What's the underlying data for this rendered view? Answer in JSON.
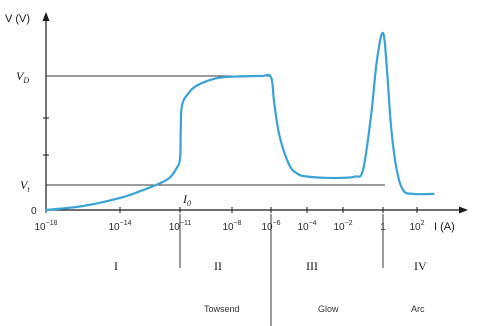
{
  "colors": {
    "curve": "#3aa3d6",
    "axis": "#1a1a1a",
    "background": "#ffffff"
  },
  "chart_data": {
    "type": "line",
    "title": "",
    "xlabel": "I (A)",
    "ylabel": "V (V)",
    "x_scale": "log",
    "xlim": [
      1e-18,
      10000.0
    ],
    "grid": false,
    "x_ticks": [
      {
        "base": "10",
        "exp": "−18",
        "value": 1e-18
      },
      {
        "base": "10",
        "exp": "−14",
        "value": 1e-14
      },
      {
        "base": "10",
        "exp": "−11",
        "value": 1e-11
      },
      {
        "base": "10",
        "exp": "−8",
        "value": 1e-08
      },
      {
        "base": "10",
        "exp": "−6",
        "value": 1e-06
      },
      {
        "base": "10",
        "exp": "−4",
        "value": 0.0001
      },
      {
        "base": "10",
        "exp": "−2",
        "value": 0.01
      },
      {
        "base": "1",
        "exp": "",
        "value": 1
      },
      {
        "base": "10",
        "exp": "2",
        "value": 100
      }
    ],
    "y_levels": {
      "zero": {
        "label": "0",
        "value": 0
      },
      "vt": {
        "base": "V",
        "sub": "t"
      },
      "vd": {
        "base": "V",
        "sub": "D"
      }
    },
    "annotations": {
      "i0": {
        "base": "I",
        "sub": "0",
        "x": 1e-11
      }
    },
    "series": [
      {
        "points": [
          [
            1e-18,
            0.0
          ],
          [
            1e-16,
            0.03
          ],
          [
            1e-14,
            0.09
          ],
          [
            1e-13,
            0.14
          ],
          [
            1e-12,
            0.2
          ],
          [
            3e-12,
            0.24
          ],
          [
            6e-12,
            0.3
          ],
          [
            1e-11,
            0.38
          ],
          [
            1.1e-11,
            0.6
          ],
          [
            1.3e-11,
            0.78
          ],
          [
            3e-11,
            0.87
          ],
          [
            1e-10,
            0.93
          ],
          [
            1e-09,
            0.98
          ],
          [
            1e-08,
            0.995
          ],
          [
            3e-07,
            1.0
          ],
          [
            1e-06,
            0.99
          ],
          [
            1.5e-06,
            0.8
          ],
          [
            3e-06,
            0.55
          ],
          [
            1e-05,
            0.34
          ],
          [
            3e-05,
            0.27
          ],
          [
            0.0001,
            0.25
          ],
          [
            0.001,
            0.24
          ],
          [
            0.01,
            0.24
          ],
          [
            0.04,
            0.25
          ],
          [
            0.1,
            0.3
          ],
          [
            0.25,
            0.7
          ],
          [
            0.5,
            1.12
          ],
          [
            1,
            1.32
          ],
          [
            1.7,
            1.05
          ],
          [
            3,
            0.62
          ],
          [
            6,
            0.32
          ],
          [
            15,
            0.15
          ],
          [
            60,
            0.12
          ],
          [
            1000,
            0.12
          ]
        ]
      }
    ],
    "regions": [
      {
        "numeral": "I",
        "mode": ""
      },
      {
        "numeral": "II",
        "mode": "Towsend"
      },
      {
        "numeral": "III",
        "mode": "Glow"
      },
      {
        "numeral": "IV",
        "mode": "Arc"
      }
    ]
  }
}
